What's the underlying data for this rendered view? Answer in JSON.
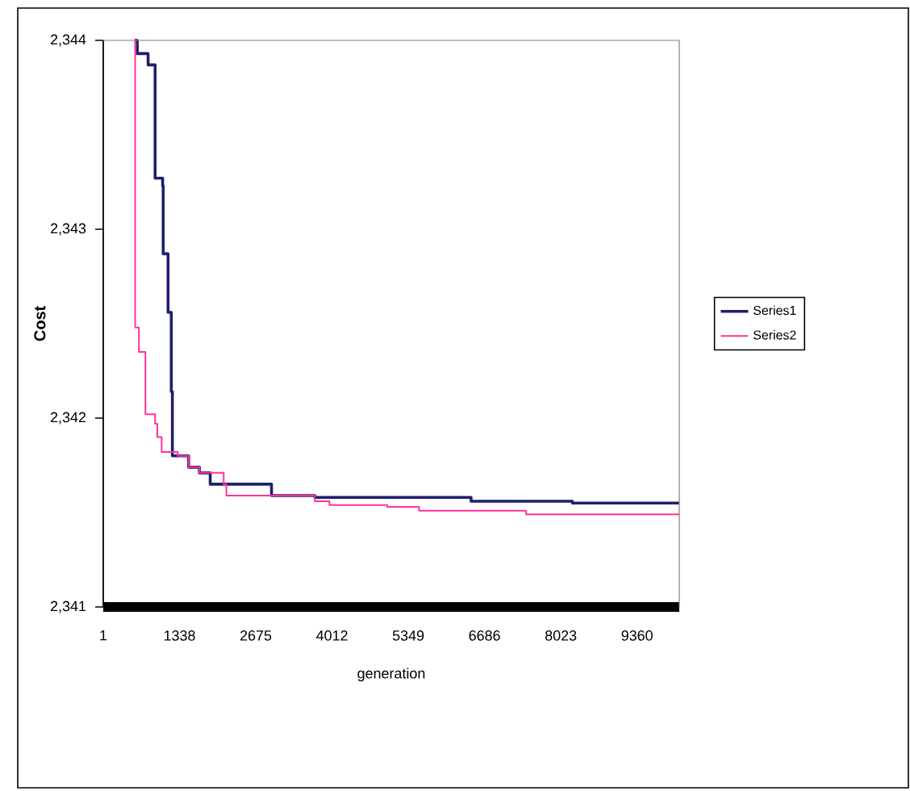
{
  "chart_data": {
    "type": "step",
    "xlabel": "generation",
    "ylabel": "Cost",
    "xlim": [
      1,
      10100
    ],
    "ylim": [
      2341,
      2344
    ],
    "xticks": [
      1,
      1338,
      2675,
      4012,
      5349,
      6686,
      8023,
      9360
    ],
    "yticks": [
      {
        "value": 2341,
        "label": "2,341"
      },
      {
        "value": 2342,
        "label": "2,342"
      },
      {
        "value": 2343,
        "label": "2,343"
      },
      {
        "value": 2344,
        "label": "2,344"
      }
    ],
    "legend": "right",
    "series": [
      {
        "name": "Series1",
        "color": "#1f1f6e",
        "x": [
          549,
          597,
          787,
          910,
          1042,
          1052,
          1137,
          1194,
          1213,
          1497,
          1686,
          1876,
          2951,
          3710,
          6450,
          8225,
          10100
        ],
        "values": [
          2344,
          2343.93,
          2343.87,
          2343.27,
          2343.23,
          2342.87,
          2342.56,
          2342.14,
          2341.8,
          2341.74,
          2341.71,
          2341.65,
          2341.59,
          2341.58,
          2341.56,
          2341.55,
          2341.55
        ]
      },
      {
        "name": "Series2",
        "color": "#ff3399",
        "x": [
          549,
          560,
          626,
          740,
          910,
          948,
          1024,
          1307,
          1497,
          1686,
          2112,
          2160,
          3710,
          3966,
          4980,
          5537,
          7414,
          10100
        ],
        "values": [
          2344,
          2342.48,
          2342.35,
          2342.02,
          2341.97,
          2341.9,
          2341.82,
          2341.8,
          2341.74,
          2341.71,
          2341.65,
          2341.59,
          2341.56,
          2341.54,
          2341.53,
          2341.51,
          2341.49,
          2341.49
        ]
      }
    ]
  }
}
